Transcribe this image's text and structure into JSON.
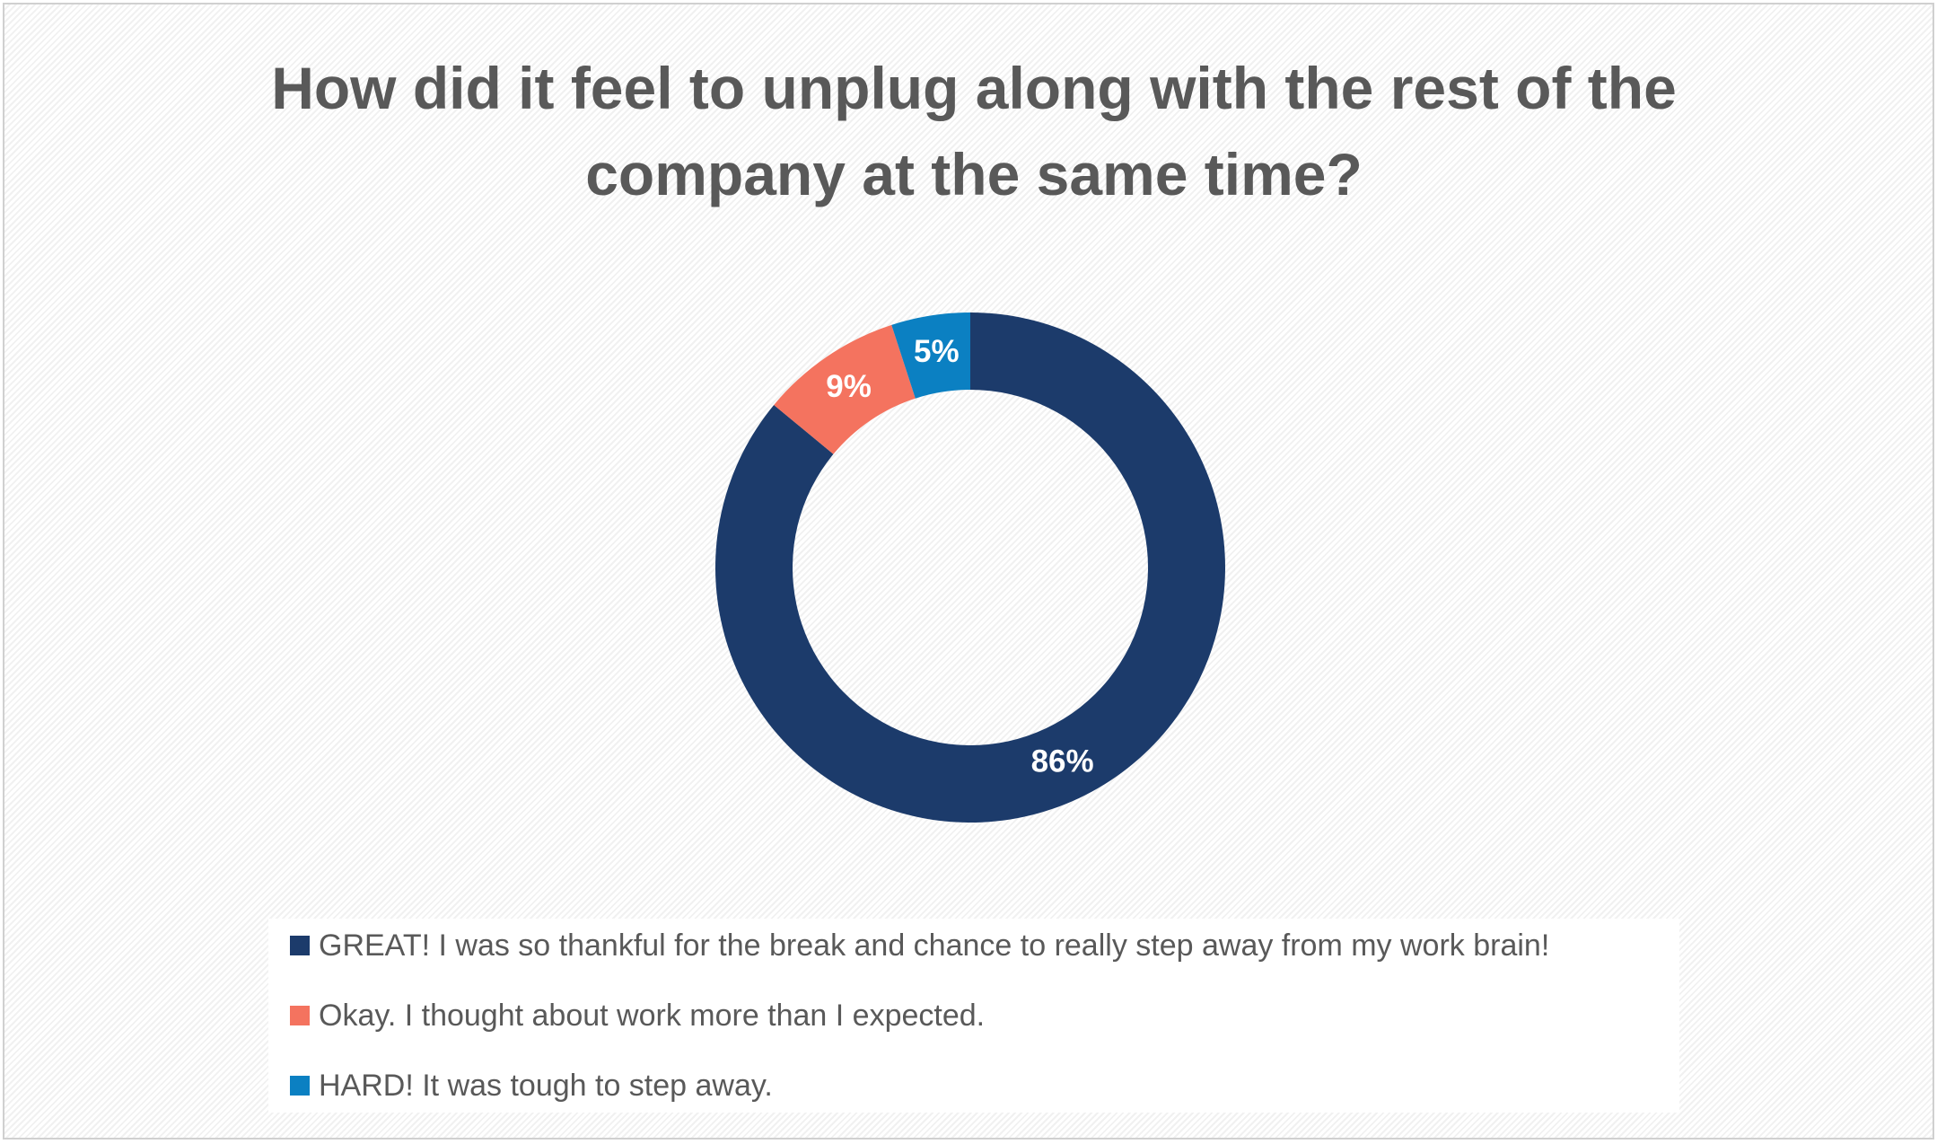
{
  "chart_data": {
    "type": "donut",
    "title": "How did it feel to unplug along with the rest of the company at the same time?",
    "categories": [
      "GREAT! I was so thankful for the break and chance to really step away from my work brain!",
      "Okay. I thought about work more than I expected.",
      "HARD! It was tough to step away."
    ],
    "values": [
      86,
      9,
      5
    ],
    "value_labels": [
      "86%",
      "9%",
      "5%"
    ],
    "colors": [
      "#1c3b6b",
      "#f4735f",
      "#0b80c2"
    ],
    "legend": "bottom"
  }
}
